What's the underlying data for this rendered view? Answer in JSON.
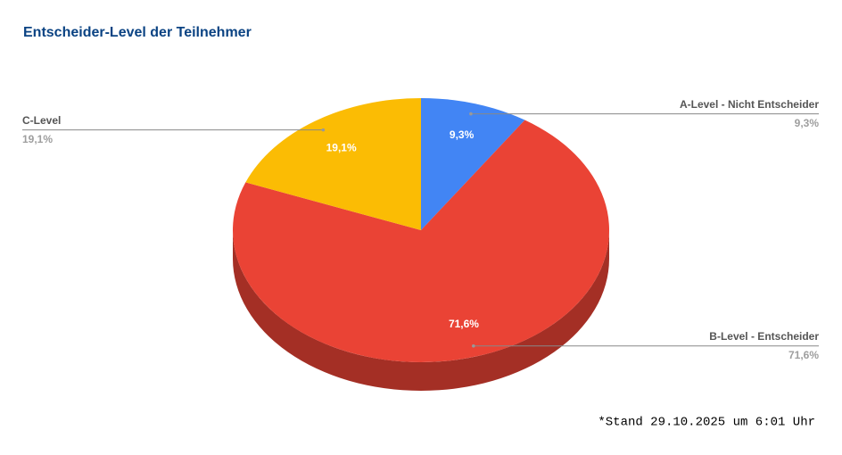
{
  "chart_data": {
    "type": "pie",
    "title": "Entscheider-Level der Teilnehmer",
    "categories": [
      "A-Level - Nicht Entscheider",
      "B-Level - Entscheider",
      "C-Level"
    ],
    "values": [
      9.3,
      71.6,
      19.1
    ],
    "value_labels": [
      "9,3%",
      "71,6%",
      "19,1%"
    ],
    "colors": [
      "#4285f4",
      "#ea4335",
      "#fbbc04"
    ],
    "footnote": "*Stand 29.10.2025 um 6:01 Uhr"
  }
}
